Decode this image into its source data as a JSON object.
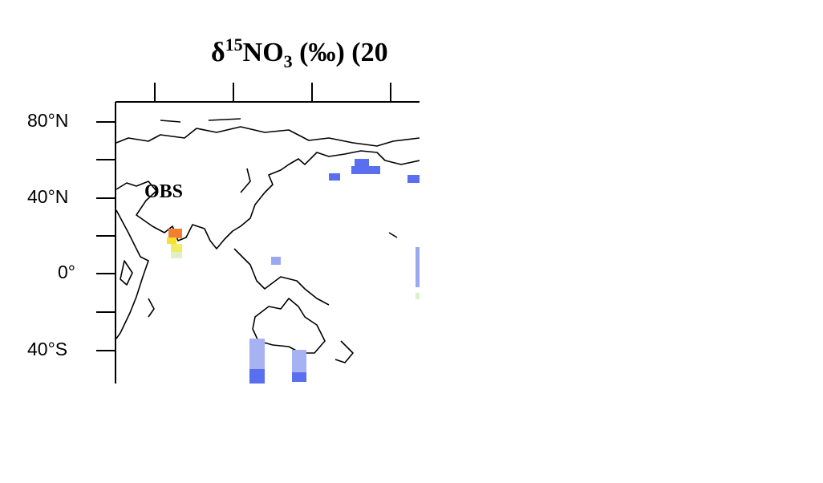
{
  "title": {
    "delta": "δ",
    "superscript": "15",
    "species": "NO",
    "subscript": "3",
    "rest": " (‰) (20"
  },
  "lat_labels": [
    "80°N",
    "40°N",
    "0°",
    "40°S"
  ],
  "annotation": "OBS"
}
